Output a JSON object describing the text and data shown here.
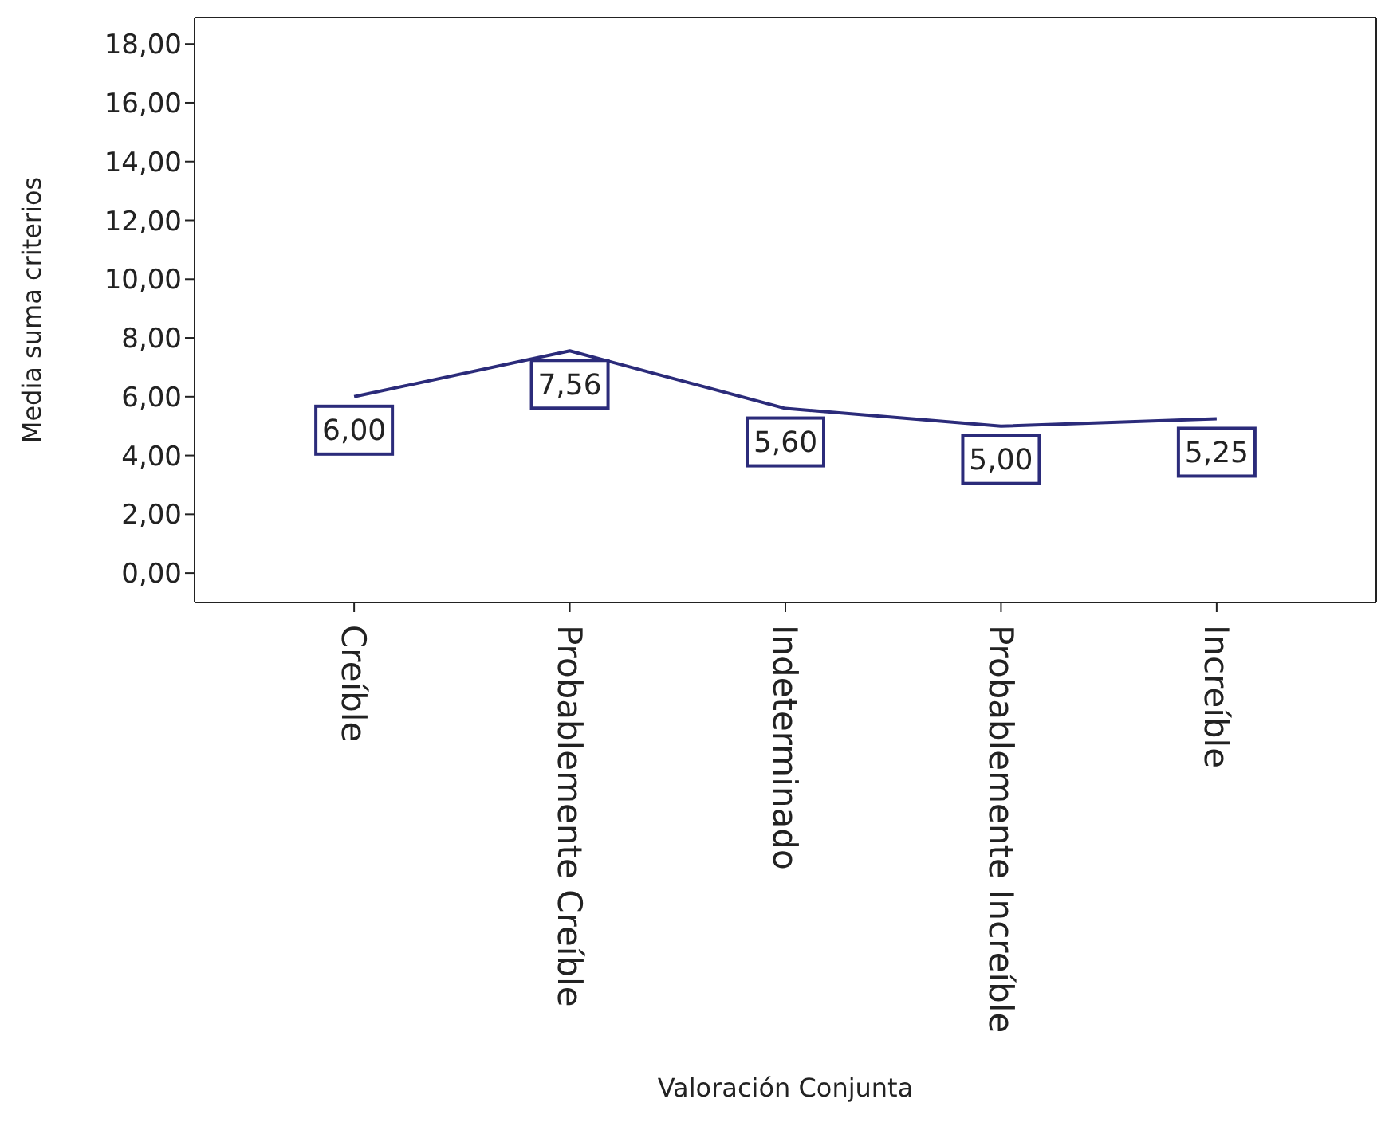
{
  "chart_data": {
    "type": "line",
    "xlabel": "Valoración Conjunta",
    "ylabel": "Media suma criterios",
    "categories": [
      "Creíble",
      "Probablemente Creíble",
      "Indeterminado",
      "Probablemente Increíble",
      "Increíble"
    ],
    "series": [
      {
        "color": "#2b2b7a",
        "values": [
          6.0,
          7.56,
          5.6,
          5.0,
          5.25
        ],
        "value_labels": [
          "6,00",
          "7,56",
          "5,60",
          "5,00",
          "5,25"
        ]
      }
    ],
    "ylim": [
      -1,
      18.9
    ],
    "yticks": [
      {
        "value": 0,
        "label": "0,00"
      },
      {
        "value": 2,
        "label": "2,00"
      },
      {
        "value": 4,
        "label": "4,00"
      },
      {
        "value": 6,
        "label": "6,00"
      },
      {
        "value": 8,
        "label": "8,00"
      },
      {
        "value": 10,
        "label": "10,00"
      },
      {
        "value": 12,
        "label": "12,00"
      },
      {
        "value": 14,
        "label": "14,00"
      },
      {
        "value": 16,
        "label": "16,00"
      },
      {
        "value": 18,
        "label": "18,00"
      }
    ],
    "grid": false,
    "legend": false,
    "line_style": "solid"
  }
}
